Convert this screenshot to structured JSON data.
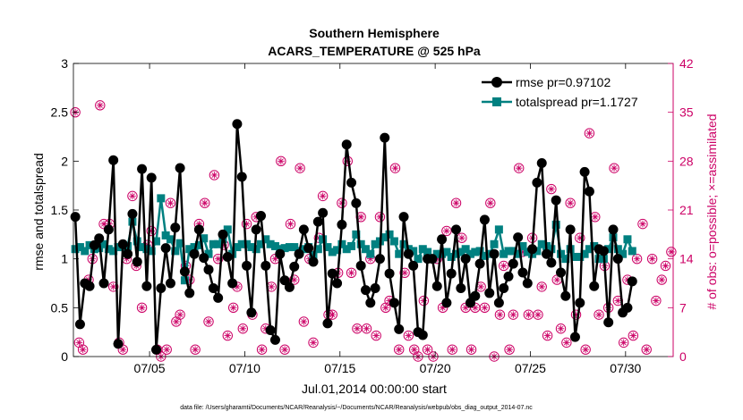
{
  "colors": {
    "rmse": "#000000",
    "spread": "#008080",
    "obs": "#cc0066",
    "axis": "#000000"
  },
  "chart_data": {
    "type": "line",
    "title": "Southern Hemisphere",
    "subtitle": "ACARS_TEMPERATURE @ 525 hPa",
    "xlabel": "Jul.01,2014 00:00:00 start",
    "ylabel": "rmse and totalspread",
    "ylabel_right": "# of obs: o=possible; ×=assimilated",
    "footnote": "data file: /Users/gharamti/Documents/NCAR/Reanalysis/~/Documents/NCAR/Reanalysis/webpub/obs_diag_output_2014-07.nc",
    "xlim": [
      1,
      32.5
    ],
    "ylim": [
      0,
      3
    ],
    "ylim_right": [
      0,
      42
    ],
    "x_ticks": [
      5,
      10,
      15,
      20,
      25,
      30
    ],
    "x_tick_labels": [
      "07/05",
      "07/10",
      "07/15",
      "07/20",
      "07/25",
      "07/30"
    ],
    "y_ticks": [
      0,
      0.5,
      1,
      1.5,
      2,
      2.5,
      3
    ],
    "y_tick_labels": [
      "0",
      "0.5",
      "1",
      "1.5",
      "2",
      "2.5",
      "3"
    ],
    "y_right_ticks": [
      0,
      7,
      14,
      21,
      28,
      35,
      42
    ],
    "y_right_tick_labels": [
      "0",
      "7",
      "14",
      "21",
      "28",
      "35",
      "42"
    ],
    "x_start": 1.1,
    "x_step": 0.25,
    "series": [
      {
        "name": "rmse pr=0.97102",
        "axis": "left",
        "marker": "circle",
        "values": [
          1.43,
          0.33,
          0.75,
          0.72,
          1.14,
          1.21,
          0.75,
          1.3,
          2.01,
          0.13,
          1.15,
          1.05,
          1.46,
          0.97,
          1.92,
          0.72,
          1.83,
          0.07,
          0.7,
          1.11,
          0.75,
          1.32,
          1.93,
          0.87,
          0.65,
          1.05,
          1.3,
          1.01,
          0.89,
          0.7,
          0.6,
          1.25,
          1.02,
          0.75,
          2.38,
          1.84,
          0.93,
          0.45,
          1.3,
          1.44,
          0.93,
          0.27,
          0.17,
          1.05,
          0.78,
          0.71,
          0.92,
          1.05,
          1.3,
          1.11,
          0.97,
          1.38,
          1.47,
          0.34,
          0.85,
          0.75,
          1.35,
          2.17,
          1.78,
          1.57,
          0.93,
          0.68,
          0.55,
          0.7,
          1.0,
          2.24,
          0.85,
          0.55,
          0.28,
          1.43,
          1.05,
          0.93,
          0.25,
          0.22,
          1.0,
          1.0,
          0.72,
          1.2,
          0.55,
          0.85,
          1.3,
          0.7,
          1.0,
          0.55,
          0.62,
          0.95,
          1.4,
          0.65,
          1.05,
          0.55,
          0.7,
          0.82,
          0.95,
          1.22,
          0.86,
          0.75,
          1.1,
          1.78,
          1.98,
          1.05,
          0.96,
          1.6,
          0.86,
          0.62,
          1.3,
          0.2,
          0.55,
          1.89,
          1.69,
          0.72,
          1.1,
          1.08,
          0.35,
          1.3,
          1.0,
          0.45,
          0.5,
          0.77
        ],
        "spread": [
          1.1,
          1.12,
          1.08,
          1.14,
          1.1,
          1.11,
          1.15,
          1.1,
          1.08,
          1.12,
          1.12,
          1.13,
          1.38,
          1.18,
          1.12,
          1.1,
          1.08,
          1.18,
          1.62,
          1.24,
          1.2,
          1.08,
          1.16,
          0.78,
          1.1,
          1.12,
          1.14,
          1.21,
          1.05,
          1.15,
          1.15,
          1.2,
          1.3,
          1.05,
          1.12,
          1.15,
          1.15,
          1.12,
          1.1,
          1.15,
          1.2,
          1.15,
          1.13,
          1.1,
          1.11,
          1.12,
          1.12,
          1.08,
          1.1,
          1.12,
          1.04,
          1.1,
          1.2,
          1.12,
          1.07,
          1.09,
          1.15,
          1.1,
          1.13,
          1.25,
          1.15,
          1.1,
          1.05,
          1.15,
          1.18,
          1.22,
          1.25,
          1.18,
          1.05,
          1.15,
          1.1,
          1.08,
          1.0,
          1.1,
          1.07,
          1.0,
          1.05,
          1.05,
          1.07,
          1.02,
          1.05,
          1.07,
          1.1,
          1.05,
          1.07,
          1.08,
          1.03,
          1.05,
          1.15,
          1.3,
          1.05,
          1.08,
          1.08,
          1.05,
          1.13,
          1.07,
          1.05,
          1.08,
          1.15,
          1.13,
          1.1,
          1.35,
          1.05,
          1.0,
          1.1,
          1.02,
          1.02,
          1.05,
          1.1,
          1.13,
          1.0,
          1.0,
          1.1,
          1.22,
          1.1,
          1.05,
          1.2,
          1.08
        ]
      },
      {
        "name": "totalspread pr=1.1727",
        "axis": "left",
        "marker": "square"
      },
      {
        "name": "# of obs possible/assimilated",
        "axis": "right",
        "marker": "circle-star",
        "points": [
          [
            1.1,
            35
          ],
          [
            1.3,
            2
          ],
          [
            1.5,
            1
          ],
          [
            1.8,
            11
          ],
          [
            2.0,
            14
          ],
          [
            2.4,
            36
          ],
          [
            2.6,
            19
          ],
          [
            2.9,
            19
          ],
          [
            3.1,
            10
          ],
          [
            3.4,
            2
          ],
          [
            3.6,
            1
          ],
          [
            3.8,
            14
          ],
          [
            4.1,
            23
          ],
          [
            4.3,
            13
          ],
          [
            4.6,
            7
          ],
          [
            4.9,
            16
          ],
          [
            5.1,
            18
          ],
          [
            5.4,
            1
          ],
          [
            5.6,
            0
          ],
          [
            5.9,
            1
          ],
          [
            6.1,
            22
          ],
          [
            6.4,
            5
          ],
          [
            6.6,
            6
          ],
          [
            6.9,
            13
          ],
          [
            7.1,
            11
          ],
          [
            7.4,
            1
          ],
          [
            7.6,
            19
          ],
          [
            7.9,
            22
          ],
          [
            8.1,
            5
          ],
          [
            8.4,
            26
          ],
          [
            8.6,
            14
          ],
          [
            8.9,
            16
          ],
          [
            9.1,
            3
          ],
          [
            9.4,
            7
          ],
          [
            9.6,
            10
          ],
          [
            9.9,
            4
          ],
          [
            10.1,
            19
          ],
          [
            10.4,
            6
          ],
          [
            10.6,
            20
          ],
          [
            10.9,
            1
          ],
          [
            11.1,
            4
          ],
          [
            11.4,
            10
          ],
          [
            11.6,
            14
          ],
          [
            11.9,
            28
          ],
          [
            12.1,
            1
          ],
          [
            12.4,
            19
          ],
          [
            12.6,
            11
          ],
          [
            12.9,
            27
          ],
          [
            13.1,
            5
          ],
          [
            13.4,
            14
          ],
          [
            13.6,
            2
          ],
          [
            13.9,
            17
          ],
          [
            14.1,
            23
          ],
          [
            14.4,
            6
          ],
          [
            14.6,
            6
          ],
          [
            14.9,
            12
          ],
          [
            15.1,
            22
          ],
          [
            15.4,
            28
          ],
          [
            15.6,
            12
          ],
          [
            15.9,
            4
          ],
          [
            16.1,
            20
          ],
          [
            16.4,
            4
          ],
          [
            16.6,
            14
          ],
          [
            16.9,
            3
          ],
          [
            17.1,
            20
          ],
          [
            17.4,
            7
          ],
          [
            17.6,
            8
          ],
          [
            17.9,
            27
          ],
          [
            18.1,
            1
          ],
          [
            18.4,
            12
          ],
          [
            18.6,
            3
          ],
          [
            18.9,
            1
          ],
          [
            19.1,
            0
          ],
          [
            19.4,
            8
          ],
          [
            19.6,
            1
          ],
          [
            19.9,
            0
          ],
          [
            20.1,
            14
          ],
          [
            20.4,
            7
          ],
          [
            20.6,
            18
          ],
          [
            20.9,
            1
          ],
          [
            21.1,
            22
          ],
          [
            21.4,
            17
          ],
          [
            21.6,
            7
          ],
          [
            21.9,
            1
          ],
          [
            22.1,
            7
          ],
          [
            22.4,
            10
          ],
          [
            22.6,
            7
          ],
          [
            22.9,
            22
          ],
          [
            23.1,
            0
          ],
          [
            23.4,
            6
          ],
          [
            23.6,
            13
          ],
          [
            23.9,
            1
          ],
          [
            24.1,
            6
          ],
          [
            24.4,
            27
          ],
          [
            24.6,
            15
          ],
          [
            24.9,
            6
          ],
          [
            25.1,
            17
          ],
          [
            25.4,
            6
          ],
          [
            25.6,
            10
          ],
          [
            25.9,
            3
          ],
          [
            26.1,
            24
          ],
          [
            26.4,
            11
          ],
          [
            26.6,
            4
          ],
          [
            26.9,
            2
          ],
          [
            27.1,
            22
          ],
          [
            27.4,
            6
          ],
          [
            27.6,
            17
          ],
          [
            27.9,
            1
          ],
          [
            28.1,
            32
          ],
          [
            28.4,
            20
          ],
          [
            28.6,
            6
          ],
          [
            28.9,
            13
          ],
          [
            29.1,
            7
          ],
          [
            29.4,
            27
          ],
          [
            29.6,
            8
          ],
          [
            29.9,
            2
          ],
          [
            30.1,
            11
          ],
          [
            30.4,
            3
          ],
          [
            30.6,
            14
          ],
          [
            30.9,
            19
          ],
          [
            31.1,
            1
          ],
          [
            31.4,
            14
          ],
          [
            31.6,
            8
          ],
          [
            31.9,
            11
          ],
          [
            32.1,
            13
          ],
          [
            32.4,
            15
          ]
        ]
      }
    ],
    "legend_position": "top-right",
    "grid": false
  }
}
